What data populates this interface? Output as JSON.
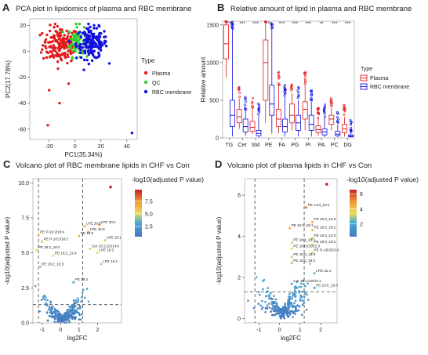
{
  "chart_data": [
    {
      "panel": "A",
      "type": "scatter",
      "title": "PCA plot in lipidomics of plasma and RBC membrane",
      "xlabel": "PC1(35.34%)",
      "ylabel": "PC2(17.78%)",
      "xlim": [
        -35,
        48
      ],
      "ylim": [
        -68,
        25
      ],
      "xticks": [
        -20,
        0,
        20,
        40
      ],
      "yticks": [
        20,
        0,
        -20,
        -40,
        -60
      ],
      "legend_title": "Type",
      "legend_position": "right",
      "groups": [
        {
          "name": "Plasma",
          "color": "#e41a1c",
          "center": [
            -11,
            5
          ],
          "spread": [
            7,
            7
          ],
          "n": 170
        },
        {
          "name": "QC",
          "color": "#33cc33",
          "center": [
            1,
            8
          ],
          "spread": [
            3,
            6
          ],
          "n": 70
        },
        {
          "name": "RBC membrane",
          "color": "#1010e0",
          "center": [
            13,
            6
          ],
          "spread": [
            6,
            6
          ],
          "n": 160
        }
      ],
      "outliers": [
        {
          "group": "Plasma",
          "x": -20,
          "y": -30
        },
        {
          "group": "Plasma",
          "x": -12,
          "y": -40
        },
        {
          "group": "Plasma",
          "x": -21,
          "y": -57
        },
        {
          "group": "Plasma",
          "x": -5,
          "y": -25
        },
        {
          "group": "RBC membrane",
          "x": 44,
          "y": -63
        }
      ]
    },
    {
      "panel": "B",
      "type": "box",
      "title": "Relative amount of lipid in plasma and RBC membrane",
      "xlabel": "",
      "ylabel": "Relative amount",
      "ylim": [
        0,
        1550
      ],
      "yticks": [
        0,
        500,
        1000,
        1500
      ],
      "categories": [
        "TG",
        "Cer",
        "SM",
        "PE",
        "FA",
        "PG",
        "PI",
        "PA",
        "PC",
        "DG"
      ],
      "significance": [
        "***",
        "***",
        "***",
        "***",
        "***",
        "***",
        "***",
        "**",
        "***",
        "***"
      ],
      "legend_title": "Type",
      "legend_position": "right",
      "series": [
        {
          "name": "Plasma",
          "color": "#e41a1c",
          "box": [
            [
              800,
              1050,
              1250,
              1500,
              1550
            ],
            [
              120,
              200,
              280,
              380,
              520
            ],
            [
              50,
              90,
              140,
              220,
              400
            ],
            [
              200,
              500,
              1000,
              1300,
              1550
            ],
            [
              60,
              150,
              250,
              380,
              700
            ],
            [
              100,
              200,
              300,
              450,
              600
            ],
            [
              100,
              250,
              380,
              480,
              700
            ],
            [
              30,
              70,
              110,
              160,
              250
            ],
            [
              100,
              180,
              250,
              300,
              400
            ],
            [
              20,
              70,
              120,
              180,
              280
            ]
          ]
        },
        {
          "name": "RBC membrane",
          "color": "#1010e0",
          "box": [
            [
              20,
              150,
              300,
              500,
              1450
            ],
            [
              30,
              80,
              150,
              250,
              380
            ],
            [
              10,
              30,
              60,
              100,
              300
            ],
            [
              60,
              300,
              450,
              700,
              1450
            ],
            [
              20,
              80,
              150,
              250,
              550
            ],
            [
              20,
              100,
              200,
              300,
              500
            ],
            [
              20,
              100,
              180,
              300,
              480
            ],
            [
              10,
              40,
              80,
              120,
              280
            ],
            [
              10,
              30,
              50,
              90,
              180
            ],
            [
              5,
              15,
              25,
              40,
              80
            ]
          ]
        }
      ]
    },
    {
      "panel": "C",
      "type": "scatter",
      "title": "Volcano plot of RBC membrane lipids in CHF vs Con",
      "xlabel": "log2FC",
      "ylabel": "-log10(adjusted P value)",
      "xlim": [
        -1.5,
        3.3
      ],
      "ylim": [
        0,
        10.3
      ],
      "xticks": [
        -1,
        0,
        1,
        2
      ],
      "yticks": [
        0,
        2.5,
        5.0,
        7.5,
        10.0
      ],
      "thresholds": {
        "x": [
          -1.2,
          1.2
        ],
        "y": 1.3
      },
      "colorbar": {
        "title": "-log10(adjusted P value)",
        "ticks": [
          2.5,
          5.0,
          7.5
        ],
        "range": [
          0.5,
          9.8
        ]
      },
      "annotations": [
        {
          "text": "LPE 20:1",
          "x": 2.1,
          "y": 7.0
        },
        {
          "text": "LPE 20:0",
          "x": 1.3,
          "y": 6.9
        },
        {
          "text": "LPE 16:0",
          "x": 1.5,
          "y": 6.5
        },
        {
          "text": "PE 18:0",
          "x": 1.0,
          "y": 6.2
        },
        {
          "text": "LPE 18:1",
          "x": 2.4,
          "y": 5.9
        },
        {
          "text": "PE P-16:2/18:4",
          "x": -1.2,
          "y": 6.3
        },
        {
          "text": "PE P-18:2/18:2",
          "x": -1.0,
          "y": 5.8
        },
        {
          "text": "Cer 18:1;O2/14:0",
          "x": 1.6,
          "y": 5.3
        },
        {
          "text": "LPE 18:2",
          "x": 2.0,
          "y": 5.0
        },
        {
          "text": "PE 18:2_18:2",
          "x": -1.3,
          "y": 5.2
        },
        {
          "text": "PE 18:2_22:4",
          "x": -0.4,
          "y": 4.8
        },
        {
          "text": "LPE 16:1",
          "x": 2.2,
          "y": 4.2
        },
        {
          "text": "PE 16:2_18:3",
          "x": -1.1,
          "y": 4.0
        },
        {
          "text": "PE 18:2",
          "x": 0.7,
          "y": 2.9
        }
      ]
    },
    {
      "panel": "D",
      "type": "scatter",
      "title": "Volcano plot of plasma lipids in CHF vs Con",
      "xlabel": "log2FC",
      "ylabel": "-log10(adjusted P value)",
      "xlim": [
        -1.7,
        2.8
      ],
      "ylim": [
        -0.2,
        6.8
      ],
      "xticks": [
        -1,
        0,
        1,
        2
      ],
      "yticks": [
        0,
        2,
        4,
        6
      ],
      "thresholds": {
        "x": [
          -1.2,
          1.2
        ],
        "y": 1.3
      },
      "colorbar": {
        "title": "-log10(adjusted P value)",
        "ticks": [
          2,
          4,
          6
        ],
        "range": [
          0.3,
          6.6
        ]
      },
      "annotations": [
        {
          "text": "PE 14:0_18:1",
          "x": 1.3,
          "y": 5.4
        },
        {
          "text": "PE 16:0_16:0",
          "x": 1.6,
          "y": 4.7
        },
        {
          "text": "PE 16:1_18:1",
          "x": 0.5,
          "y": 4.4
        },
        {
          "text": "PE 18:2_18:2",
          "x": 1.6,
          "y": 4.3
        },
        {
          "text": "PE 16:0_16:0",
          "x": 1.6,
          "y": 3.9
        },
        {
          "text": "PE 16:0_18:1",
          "x": 1.6,
          "y": 3.6
        },
        {
          "text": "PE 18:1_18:1",
          "x": 0.6,
          "y": 3.7
        },
        {
          "text": "PE 18:0;O2/22:0",
          "x": 0.6,
          "y": 3.4
        },
        {
          "text": "PE O-18:0/22:4",
          "x": 1.6,
          "y": 3.2
        },
        {
          "text": "PE 18:0_18:3",
          "x": 0.6,
          "y": 3.0
        },
        {
          "text": "PE 18:0_18:2",
          "x": 0.6,
          "y": 2.7
        },
        {
          "text": "LPE 22:4",
          "x": 1.7,
          "y": 2.2
        },
        {
          "text": "Cer 18:1;O2/24:1",
          "x": 0.6,
          "y": 1.7
        },
        {
          "text": "PE 18:0_22:4",
          "x": 1.7,
          "y": 1.5
        }
      ]
    }
  ],
  "panels": {
    "a": {
      "letter": "A"
    },
    "b": {
      "letter": "B"
    },
    "c": {
      "letter": "C"
    },
    "d": {
      "letter": "D"
    }
  }
}
